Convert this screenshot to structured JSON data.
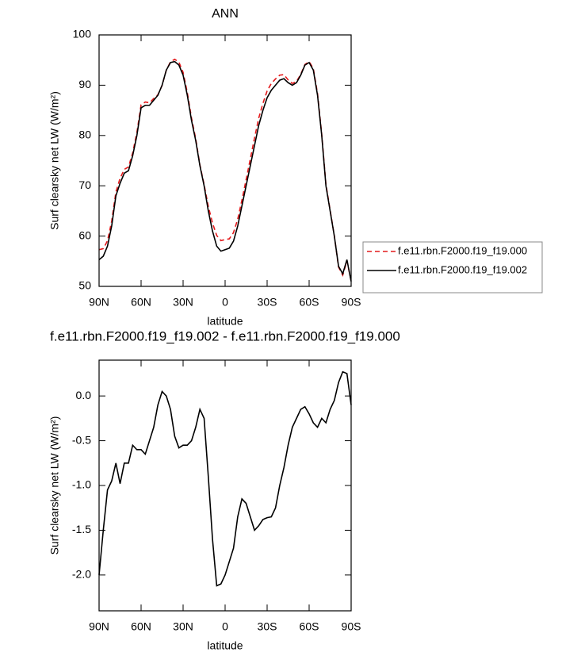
{
  "chart_data": [
    {
      "type": "line",
      "title": "ANN",
      "xlabel": "latitude",
      "ylabel": "Surf clearsky net LW (W/m²)",
      "x": [
        90,
        87,
        84,
        81,
        78,
        75,
        72,
        69,
        66,
        63,
        60,
        57,
        54,
        51,
        48,
        45,
        42,
        39,
        36,
        33,
        30,
        27,
        24,
        21,
        18,
        15,
        12,
        9,
        6,
        3,
        0,
        -3,
        -6,
        -9,
        -12,
        -15,
        -18,
        -21,
        -24,
        -27,
        -30,
        -33,
        -36,
        -39,
        -42,
        -45,
        -48,
        -51,
        -54,
        -57,
        -60,
        -63,
        -66,
        -69,
        -72,
        -75,
        -78,
        -81,
        -84,
        -87,
        -90
      ],
      "series": [
        {
          "name": "f.e11.rbn.F2000.f19_f19.000",
          "color": "#e41a1c",
          "linestyle": "dashed",
          "values": [
            57.3,
            57.5,
            59.05,
            62.95,
            68.75,
            71.5,
            73.25,
            73.75,
            76.55,
            80.6,
            86.1,
            86.65,
            86.5,
            87.35,
            88.1,
            89.95,
            93,
            94.65,
            95.15,
            94.58,
            92.55,
            88.55,
            83.5,
            79.35,
            74.15,
            70.25,
            65.9,
            62.6,
            60.12,
            59.1,
            59.3,
            59.45,
            60.7,
            63.35,
            67.15,
            71.2,
            75.35,
            79.5,
            83.45,
            86.38,
            88.86,
            90.35,
            91.25,
            92,
            92.1,
            91.05,
            90.35,
            90.75,
            92.15,
            94.12,
            94.7,
            93.3,
            88.35,
            80.25,
            70.3,
            65.15,
            60.05,
            53.85,
            52.23,
            55.05,
            51.1
          ]
        },
        {
          "name": "f.e11.rbn.F2000.f19_f19.002",
          "color": "#000000",
          "linestyle": "solid",
          "values": [
            55.3,
            56,
            58,
            62,
            68,
            70.5,
            72.5,
            73,
            76,
            80,
            85.5,
            86,
            86,
            87,
            88,
            90,
            93,
            94.5,
            94.7,
            94,
            92,
            88,
            83,
            79,
            74,
            70,
            65,
            61,
            58,
            57,
            57.3,
            57.6,
            59,
            62,
            66,
            70,
            74,
            78,
            82,
            85,
            87.5,
            89,
            90,
            91,
            91.3,
            90.5,
            90,
            90.5,
            92,
            94,
            94.5,
            93,
            88,
            80,
            70,
            65,
            60,
            54,
            52.5,
            55.3,
            51
          ]
        }
      ],
      "xlim": [
        90,
        -90
      ],
      "ylim": [
        50,
        100
      ],
      "xticks": [
        {
          "value": 90,
          "label": "90N"
        },
        {
          "value": 60,
          "label": "60N"
        },
        {
          "value": 30,
          "label": "30N"
        },
        0,
        {
          "value": -30,
          "label": "30S"
        },
        {
          "value": -60,
          "label": "60S"
        },
        {
          "value": -90,
          "label": "90S"
        }
      ],
      "yticks": [
        50,
        60,
        70,
        80,
        90,
        100
      ],
      "legend": "right"
    },
    {
      "type": "line",
      "title": "f.e11.rbn.F2000.f19_f19.002 - f.e11.rbn.F2000.f19_f19.000",
      "xlabel": "latitude",
      "ylabel": "Surf clearsky net LW (W/m²)",
      "x": [
        90,
        87,
        84,
        81,
        78,
        75,
        72,
        69,
        66,
        63,
        60,
        57,
        54,
        51,
        48,
        45,
        42,
        39,
        36,
        33,
        30,
        27,
        24,
        21,
        18,
        15,
        12,
        9,
        6,
        3,
        0,
        -3,
        -6,
        -9,
        -12,
        -15,
        -18,
        -21,
        -24,
        -27,
        -30,
        -33,
        -36,
        -39,
        -42,
        -45,
        -48,
        -51,
        -54,
        -57,
        -60,
        -63,
        -66,
        -69,
        -72,
        -75,
        -78,
        -81,
        -84,
        -87,
        -90
      ],
      "series": [
        {
          "color": "#000000",
          "linestyle": "solid",
          "values": [
            -2.0,
            -1.5,
            -1.05,
            -0.95,
            -0.75,
            -0.98,
            -0.75,
            -0.75,
            -0.55,
            -0.6,
            -0.6,
            -0.65,
            -0.5,
            -0.35,
            -0.1,
            0.05,
            0.0,
            -0.15,
            -0.45,
            -0.58,
            -0.55,
            -0.55,
            -0.5,
            -0.35,
            -0.15,
            -0.25,
            -0.9,
            -1.6,
            -2.12,
            -2.1,
            -2.0,
            -1.85,
            -1.7,
            -1.35,
            -1.15,
            -1.2,
            -1.35,
            -1.5,
            -1.45,
            -1.38,
            -1.36,
            -1.35,
            -1.25,
            -1.0,
            -0.8,
            -0.55,
            -0.35,
            -0.25,
            -0.15,
            -0.12,
            -0.2,
            -0.3,
            -0.35,
            -0.25,
            -0.3,
            -0.15,
            -0.05,
            0.15,
            0.27,
            0.25,
            -0.1
          ]
        }
      ],
      "xlim": [
        90,
        -90
      ],
      "ylim": [
        -2.4,
        0.4
      ],
      "xticks": [
        {
          "value": 90,
          "label": "90N"
        },
        {
          "value": 60,
          "label": "60N"
        },
        {
          "value": 30,
          "label": "30N"
        },
        0,
        {
          "value": -30,
          "label": "30S"
        },
        {
          "value": -60,
          "label": "60S"
        },
        {
          "value": -90,
          "label": "90S"
        }
      ],
      "yticks": [
        {
          "value": -2,
          "label": "-2.0"
        },
        -1.5,
        {
          "value": -1,
          "label": "-1.0"
        },
        -0.5,
        {
          "value": 0,
          "label": "0.0"
        }
      ]
    }
  ]
}
